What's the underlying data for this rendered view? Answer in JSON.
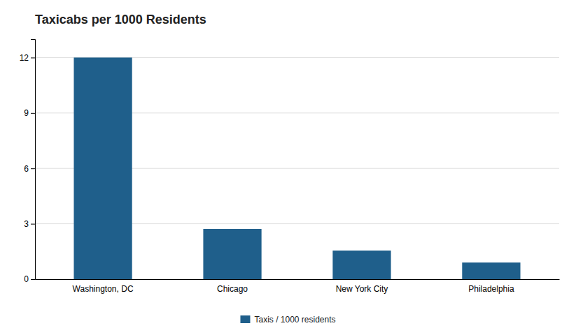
{
  "chart_data": {
    "type": "bar",
    "title": "Taxicabs per 1000 Residents",
    "categories": [
      "Washington, DC",
      "Chicago",
      "New York City",
      "Philadelphia"
    ],
    "series": [
      {
        "name": "Taxis / 1000 residents",
        "color": "#1f5f8b",
        "values": [
          12.0,
          2.72,
          1.55,
          0.9
        ]
      }
    ],
    "ylim": [
      0,
      13
    ],
    "yticks": [
      0,
      3,
      6,
      9,
      12
    ],
    "grid": true,
    "legend": "bottom"
  }
}
